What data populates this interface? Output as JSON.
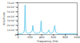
{
  "chart_data": {
    "type": "line",
    "x_label": "Frequency (Hz)",
    "y_label": "Amplitude",
    "color": "#4fc3e8",
    "x": [
      0,
      20,
      40,
      60,
      80,
      100,
      110,
      120,
      130,
      140,
      160,
      180,
      200,
      220,
      240,
      250,
      260,
      280,
      300,
      320,
      340,
      360,
      380,
      390,
      400,
      420,
      440,
      460,
      480,
      500,
      520,
      540,
      560,
      580,
      600,
      610,
      620,
      630,
      640,
      660,
      680,
      700,
      720,
      740,
      760,
      780,
      800,
      850,
      900,
      950,
      1000
    ],
    "values": [
      3e-05,
      2e-05,
      2e-05,
      2e-05,
      3e-05,
      5e-05,
      0.00012,
      0.00065,
      0.00012,
      5e-05,
      3e-05,
      3e-05,
      4e-05,
      5e-05,
      9e-05,
      0.0002,
      8e-05,
      4e-05,
      3e-05,
      3e-05,
      3e-05,
      4e-05,
      8e-05,
      0.0003,
      8e-05,
      4e-05,
      3e-05,
      3e-05,
      3e-05,
      5e-05,
      0.0001,
      4e-05,
      3e-05,
      4e-05,
      8e-05,
      0.00012,
      0.0002,
      0.0001,
      5e-05,
      3e-05,
      2e-05,
      2e-05,
      2e-05,
      2e-05,
      2e-05,
      2e-05,
      2e-05,
      2e-05,
      2e-05,
      2e-05,
      2e-05
    ],
    "xlim": [
      0,
      1000
    ],
    "xticks": [
      0,
      200,
      400,
      600,
      800,
      1000
    ],
    "ylim": [
      0,
      0.0007
    ],
    "yticks": [
      {
        "value": 0,
        "label": "0"
      },
      {
        "value": 0.0001,
        "label": "1×10⁻⁴"
      },
      {
        "value": 0.0002,
        "label": "2×10⁻⁴"
      },
      {
        "value": 0.0003,
        "label": "3×10⁻⁴"
      },
      {
        "value": 0.0004,
        "label": "4×10⁻⁴"
      },
      {
        "value": 0.0005,
        "label": "5×10⁻⁴"
      },
      {
        "value": 0.0006,
        "label": "6×10⁻⁴"
      },
      {
        "value": 0.0007,
        "label": "7×10⁻⁴"
      }
    ]
  }
}
